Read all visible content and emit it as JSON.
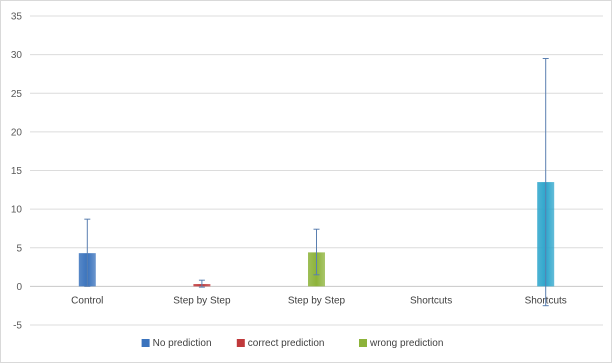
{
  "chart_data": {
    "type": "bar",
    "title": "",
    "xlabel": "",
    "ylabel": "",
    "ylim": [
      -5,
      35
    ],
    "yticks": [
      -5,
      0,
      5,
      10,
      15,
      20,
      25,
      30,
      35
    ],
    "grid": true,
    "legend_position": "bottom",
    "categories": [
      "Control",
      "Step by Step",
      "Step by Step",
      "Shortcuts",
      "Shortcuts"
    ],
    "legend": [
      {
        "label": "No prediction",
        "color": "#3a73bd"
      },
      {
        "label": "correct prediction",
        "color": "#c0393b"
      },
      {
        "label": "wrong prediction",
        "color": "#8db33a"
      }
    ],
    "bars": [
      {
        "category_index": 0,
        "value": 4.3,
        "err_low": 0,
        "err_high": 8.7,
        "color": "#3a73bd"
      },
      {
        "category_index": 1,
        "value": 0.3,
        "err_low": -0.1,
        "err_high": 0.8,
        "color": "#c0393b"
      },
      {
        "category_index": 2,
        "value": 4.4,
        "err_low": 1.5,
        "err_high": 7.4,
        "color": "#8db33a"
      },
      {
        "category_index": 4,
        "value": 13.5,
        "err_low": -2.5,
        "err_high": 29.5,
        "color": "#2ea6cc"
      }
    ]
  }
}
